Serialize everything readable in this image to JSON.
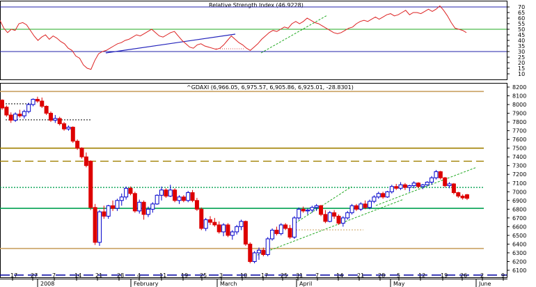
{
  "chart_data": [
    {
      "type": "line",
      "title": "Relative Strength Index (46.9228)",
      "x_axis": "shared time axis (Dec 2007 - Jun 2008)",
      "y_ticks": [
        "70",
        "65",
        "60",
        "55",
        "50",
        "45",
        "40",
        "35",
        "30",
        "25",
        "20",
        "15",
        "10"
      ],
      "ylim": [
        5,
        75
      ],
      "horizontal_levels": [
        70,
        50,
        30
      ],
      "series": [
        {
          "values": [
            58,
            51,
            47,
            50,
            49,
            55,
            56,
            54,
            49,
            44,
            40,
            43,
            45,
            41,
            44,
            42,
            39,
            37,
            33,
            31,
            26,
            24,
            18,
            15,
            14,
            22,
            28,
            30,
            31,
            33,
            35,
            37,
            38,
            40,
            41,
            43,
            45,
            44,
            46,
            48,
            50,
            47,
            44,
            43,
            45,
            47,
            48,
            44,
            40,
            37,
            34,
            33,
            36,
            37,
            35,
            34,
            33,
            32,
            33,
            36,
            40,
            44,
            41,
            38,
            36,
            33,
            31,
            34,
            37,
            41,
            44,
            47,
            49,
            48,
            50,
            52,
            51,
            55,
            57,
            55,
            57,
            60,
            58,
            56,
            55,
            53,
            51,
            49,
            47,
            46,
            47,
            49,
            51,
            52,
            55,
            57,
            58,
            57,
            59,
            61,
            59,
            61,
            63,
            64,
            62,
            63,
            65,
            67,
            63,
            65,
            65,
            64,
            66,
            68,
            66,
            68,
            71,
            67,
            62,
            56,
            51,
            50,
            49,
            47
          ]
        }
      ],
      "trendlines": [
        "blue rising line under RSI lows (Jan-Feb)",
        "green dashed rising line (Mar-Apr)",
        "red dotted horizontal segment near 36"
      ]
    },
    {
      "type": "candlestick",
      "title": "^GDAXI (6,966.05, 6,975.57, 6,905.86, 6,925.01, -28.8301)",
      "y_ticks": [
        "8200",
        "8100",
        "8000",
        "7900",
        "7800",
        "7700",
        "7600",
        "7500",
        "7400",
        "7300",
        "7200",
        "7100",
        "7000",
        "6900",
        "6800",
        "6700",
        "6600",
        "6500",
        "6400",
        "6300",
        "6200",
        "6100"
      ],
      "ylim": [
        6020,
        8240
      ],
      "x_tick_labels": [
        "17",
        "27",
        "7",
        "14",
        "21",
        "28",
        "4",
        "11",
        "19",
        "25",
        "3",
        "10",
        "17",
        "25",
        "31",
        "7",
        "14",
        "21",
        "28",
        "5",
        "12",
        "19",
        "26",
        "2",
        "9"
      ],
      "month_labels": [
        "2008",
        "February",
        "March",
        "April",
        "May",
        "June"
      ],
      "candles": [
        [
          8050,
          8060,
          7940,
          7960
        ],
        [
          7970,
          7990,
          7860,
          7880
        ],
        [
          7880,
          7910,
          7790,
          7820
        ],
        [
          7820,
          7910,
          7800,
          7890
        ],
        [
          7890,
          7940,
          7850,
          7870
        ],
        [
          7870,
          7940,
          7840,
          7920
        ],
        [
          7920,
          8020,
          7900,
          8000
        ],
        [
          8000,
          8070,
          7980,
          8060
        ],
        [
          8060,
          8090,
          8020,
          8040
        ],
        [
          8040,
          8080,
          7960,
          7980
        ],
        [
          7980,
          7990,
          7880,
          7900
        ],
        [
          7900,
          7920,
          7800,
          7820
        ],
        [
          7820,
          7880,
          7790,
          7840
        ],
        [
          7840,
          7860,
          7760,
          7780
        ],
        [
          7780,
          7800,
          7700,
          7720
        ],
        [
          7720,
          7760,
          7700,
          7740
        ],
        [
          7740,
          7750,
          7560,
          7580
        ],
        [
          7580,
          7600,
          7480,
          7500
        ],
        [
          7500,
          7510,
          7380,
          7400
        ],
        [
          7400,
          7450,
          7280,
          7300
        ],
        [
          7350,
          7360,
          6790,
          6820
        ],
        [
          6820,
          6860,
          6390,
          6420
        ],
        [
          6420,
          6790,
          6380,
          6770
        ],
        [
          6770,
          6840,
          6690,
          6720
        ],
        [
          6720,
          6850,
          6690,
          6840
        ],
        [
          6840,
          6900,
          6780,
          6810
        ],
        [
          6810,
          6920,
          6780,
          6900
        ],
        [
          6900,
          6980,
          6840,
          6940
        ],
        [
          6940,
          7060,
          6910,
          7040
        ],
        [
          7040,
          7060,
          6960,
          6980
        ],
        [
          6980,
          7000,
          6760,
          6780
        ],
        [
          6780,
          6910,
          6750,
          6880
        ],
        [
          6880,
          6900,
          6680,
          6740
        ],
        [
          6740,
          6830,
          6710,
          6800
        ],
        [
          6800,
          6880,
          6760,
          6860
        ],
        [
          6860,
          6970,
          6850,
          6960
        ],
        [
          6960,
          7060,
          6900,
          7020
        ],
        [
          7020,
          7040,
          6930,
          6950
        ],
        [
          6950,
          7080,
          6940,
          7020
        ],
        [
          7020,
          7040,
          6880,
          6900
        ],
        [
          6900,
          6960,
          6860,
          6940
        ],
        [
          6940,
          6960,
          6880,
          6900
        ],
        [
          6900,
          7010,
          6880,
          6990
        ],
        [
          6990,
          7020,
          6880,
          6900
        ],
        [
          6900,
          6930,
          6780,
          6800
        ],
        [
          6800,
          6820,
          6560,
          6580
        ],
        [
          6580,
          6700,
          6550,
          6680
        ],
        [
          6680,
          6720,
          6620,
          6650
        ],
        [
          6650,
          6700,
          6600,
          6620
        ],
        [
          6620,
          6660,
          6520,
          6540
        ],
        [
          6540,
          6640,
          6490,
          6620
        ],
        [
          6620,
          6640,
          6480,
          6500
        ],
        [
          6500,
          6560,
          6450,
          6540
        ],
        [
          6540,
          6620,
          6510,
          6600
        ],
        [
          6600,
          6680,
          6560,
          6660
        ],
        [
          6660,
          6670,
          6380,
          6400
        ],
        [
          6400,
          6420,
          6180,
          6200
        ],
        [
          6200,
          6320,
          6180,
          6300
        ],
        [
          6300,
          6360,
          6220,
          6330
        ],
        [
          6330,
          6360,
          6260,
          6280
        ],
        [
          6280,
          6480,
          6260,
          6460
        ],
        [
          6460,
          6580,
          6440,
          6560
        ],
        [
          6560,
          6600,
          6500,
          6520
        ],
        [
          6520,
          6640,
          6500,
          6620
        ],
        [
          6620,
          6640,
          6560,
          6580
        ],
        [
          6580,
          6620,
          6460,
          6480
        ],
        [
          6480,
          6720,
          6460,
          6700
        ],
        [
          6700,
          6820,
          6680,
          6800
        ],
        [
          6800,
          6830,
          6760,
          6780
        ],
        [
          6780,
          6810,
          6740,
          6790
        ],
        [
          6790,
          6840,
          6760,
          6820
        ],
        [
          6820,
          6860,
          6780,
          6840
        ],
        [
          6840,
          6850,
          6720,
          6740
        ],
        [
          6740,
          6790,
          6640,
          6660
        ],
        [
          6660,
          6780,
          6650,
          6760
        ],
        [
          6760,
          6790,
          6690,
          6720
        ],
        [
          6720,
          6740,
          6620,
          6640
        ],
        [
          6640,
          6720,
          6600,
          6700
        ],
        [
          6700,
          6780,
          6680,
          6760
        ],
        [
          6760,
          6860,
          6740,
          6840
        ],
        [
          6840,
          6860,
          6780,
          6800
        ],
        [
          6800,
          6880,
          6780,
          6860
        ],
        [
          6860,
          6900,
          6800,
          6820
        ],
        [
          6820,
          6910,
          6800,
          6890
        ],
        [
          6890,
          6960,
          6870,
          6940
        ],
        [
          6940,
          7000,
          6920,
          6980
        ],
        [
          6980,
          7000,
          6920,
          6940
        ],
        [
          6940,
          7010,
          6930,
          7000
        ],
        [
          7000,
          7080,
          6980,
          7060
        ],
        [
          7060,
          7090,
          7020,
          7040
        ],
        [
          7040,
          7110,
          7020,
          7080
        ],
        [
          7080,
          7100,
          7020,
          7050
        ],
        [
          7050,
          7080,
          7000,
          7070
        ],
        [
          7070,
          7120,
          7040,
          7100
        ],
        [
          7100,
          7110,
          7040,
          7060
        ],
        [
          7060,
          7090,
          7030,
          7080
        ],
        [
          7080,
          7120,
          7060,
          7110
        ],
        [
          7110,
          7180,
          7080,
          7160
        ],
        [
          7160,
          7250,
          7140,
          7230
        ],
        [
          7230,
          7240,
          7140,
          7160
        ],
        [
          7160,
          7170,
          7050,
          7070
        ],
        [
          7070,
          7110,
          7040,
          7090
        ],
        [
          7090,
          7100,
          6970,
          6990
        ],
        [
          6990,
          7000,
          6930,
          6950
        ],
        [
          6950,
          6970,
          6910,
          6930
        ],
        [
          6966.05,
          6975.57,
          6905.86,
          6925.01
        ]
      ],
      "horizontal_levels": [
        {
          "value": 8150,
          "color": "#c8a060",
          "style": "solid"
        },
        {
          "value": 7500,
          "color": "#a08000",
          "style": "solid"
        },
        {
          "value": 7350,
          "color": "#a08000",
          "style": "dashed"
        },
        {
          "value": 7050,
          "color": "#00a050",
          "style": "dotted"
        },
        {
          "value": 6810,
          "color": "#00a050",
          "style": "solid"
        },
        {
          "value": 6350,
          "color": "#c8a060",
          "style": "solid"
        },
        {
          "value": 6045,
          "color": "#0000a0",
          "style": "dashed"
        }
      ],
      "colors": {
        "up": "#0000cc",
        "down": "#dd0000"
      }
    }
  ]
}
